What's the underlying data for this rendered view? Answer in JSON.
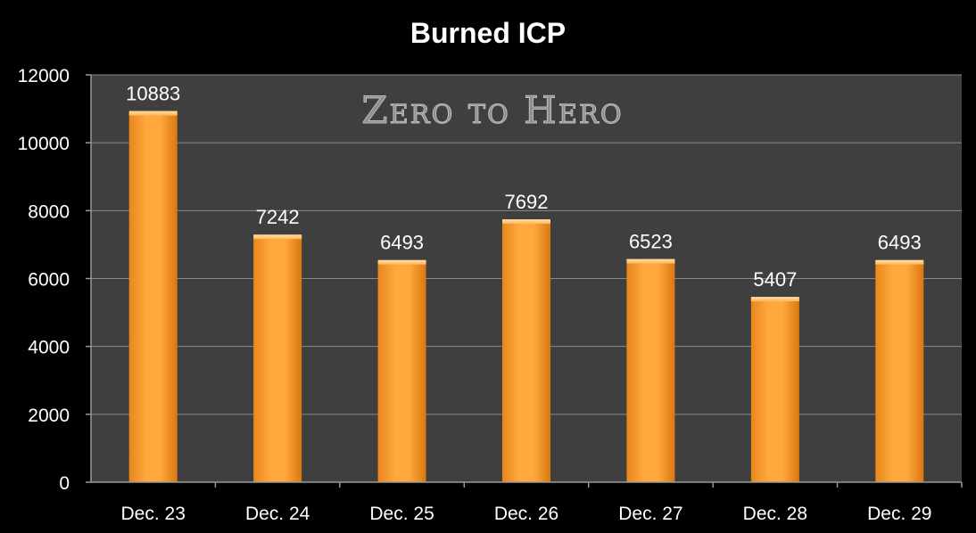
{
  "chart_data": {
    "type": "bar",
    "title": "Burned ICP",
    "watermark": "Zero to Hero",
    "categories": [
      "Dec. 23",
      "Dec. 24",
      "Dec. 25",
      "Dec. 26",
      "Dec. 27",
      "Dec. 28",
      "Dec. 29"
    ],
    "values": [
      10883,
      7242,
      6493,
      7692,
      6523,
      5407,
      6493
    ],
    "data_labels": [
      "10883",
      "7242",
      "6493",
      "7692",
      "6523",
      "5407",
      "6493"
    ],
    "ylim": [
      0,
      12000
    ],
    "yticks": [
      "0",
      "2000",
      "4000",
      "6000",
      "8000",
      "10000",
      "12000"
    ],
    "yticks_values": [
      0,
      2000,
      4000,
      6000,
      8000,
      10000,
      12000
    ],
    "grid": true,
    "legend": "none",
    "xlabel": "",
    "ylabel": ""
  },
  "colors": {
    "background": "#000000",
    "plot_area": "#3f3f3f",
    "gridline": "#8a8a8a",
    "bar_light": "#ffa53a",
    "bar_dark": "#e07a12",
    "bar_top": "#ffd08a"
  }
}
